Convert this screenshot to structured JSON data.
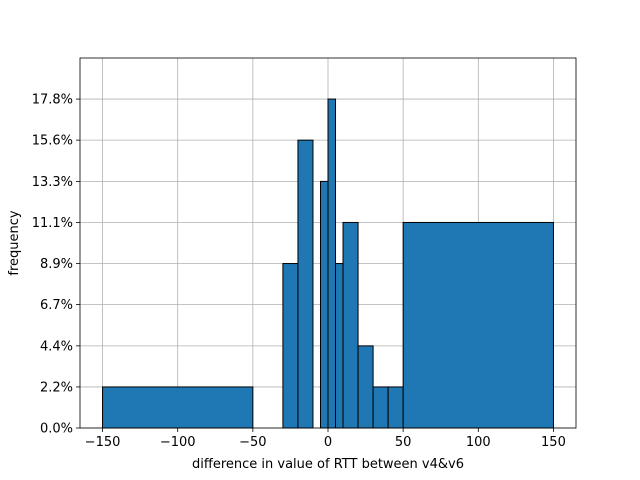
{
  "chart_data": {
    "type": "bar",
    "title": "",
    "xlabel": "difference in value of RTT between v4&v6",
    "ylabel": "frequency",
    "xlim": [
      -165,
      165
    ],
    "ylim": [
      0,
      0.2
    ],
    "grid": true,
    "bar_color": "#1f77b4",
    "edge_color": "#000000",
    "x_ticks": [
      -150,
      -100,
      -50,
      0,
      50,
      100,
      150
    ],
    "x_tick_labels": [
      "−150",
      "−100",
      "−50",
      "0",
      "50",
      "100",
      "150"
    ],
    "y_ticks": [
      0.0,
      0.0222,
      0.0444,
      0.0667,
      0.0889,
      0.1111,
      0.1333,
      0.1556,
      0.1778
    ],
    "y_tick_labels": [
      "0.0%",
      "2.2%",
      "4.4%",
      "6.7%",
      "8.9%",
      "11.1%",
      "13.3%",
      "15.6%",
      "17.8%"
    ],
    "bins": [
      {
        "left": -150,
        "right": -50,
        "value": 0.0222
      },
      {
        "left": -30,
        "right": -20,
        "value": 0.0889
      },
      {
        "left": -20,
        "right": -10,
        "value": 0.1556
      },
      {
        "left": -5,
        "right": 0,
        "value": 0.1333
      },
      {
        "left": 0,
        "right": 5,
        "value": 0.1778
      },
      {
        "left": 5,
        "right": 10,
        "value": 0.0889
      },
      {
        "left": 10,
        "right": 20,
        "value": 0.1111
      },
      {
        "left": 20,
        "right": 30,
        "value": 0.0444
      },
      {
        "left": 30,
        "right": 40,
        "value": 0.0222
      },
      {
        "left": 40,
        "right": 50,
        "value": 0.0222
      },
      {
        "left": 50,
        "right": 150,
        "value": 0.1111
      }
    ]
  }
}
